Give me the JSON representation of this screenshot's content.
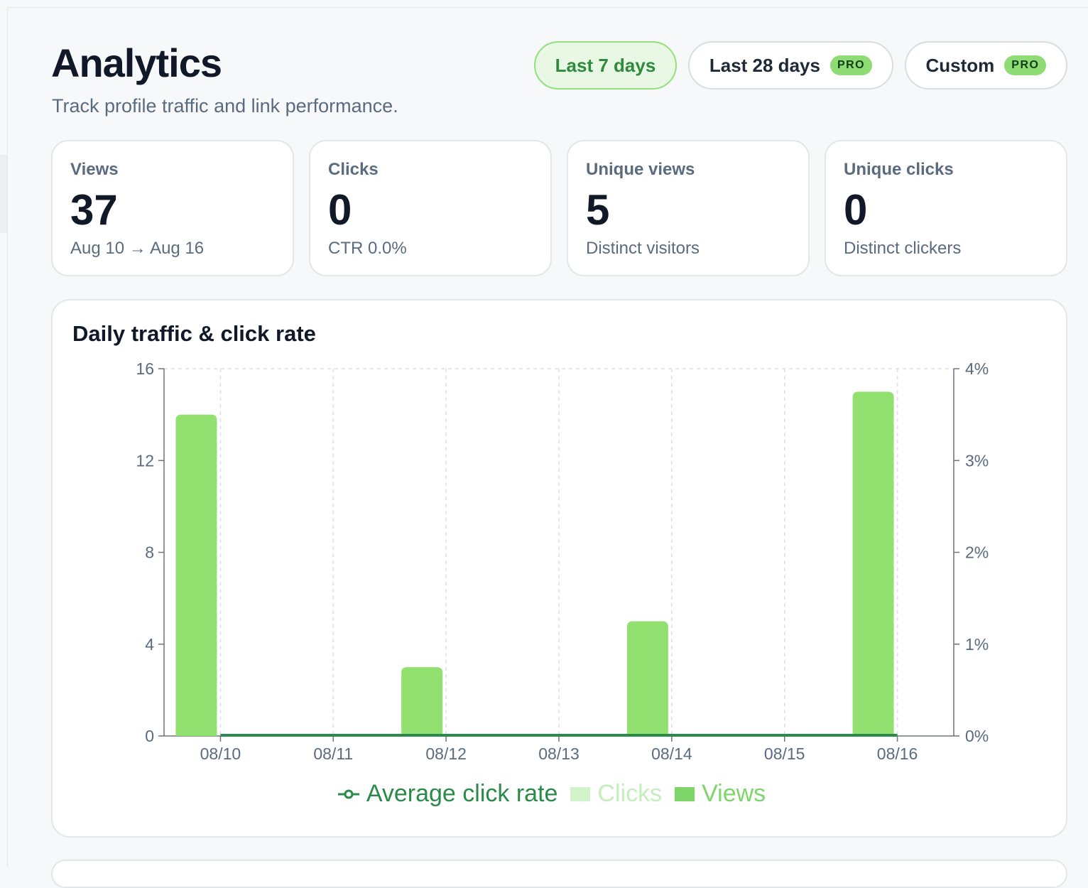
{
  "header": {
    "title": "Analytics",
    "subtitle": "Track profile traffic and link performance."
  },
  "ranges": [
    {
      "label": "Last 7 days",
      "active": true,
      "pro": false
    },
    {
      "label": "Last 28 days",
      "active": false,
      "pro": true
    },
    {
      "label": "Custom",
      "active": false,
      "pro": true
    }
  ],
  "pro_badge": "PRO",
  "stats": [
    {
      "label": "Views",
      "value": "37",
      "sub": "Aug 10 → Aug 16"
    },
    {
      "label": "Clicks",
      "value": "0",
      "sub": "CTR 0.0%"
    },
    {
      "label": "Unique views",
      "value": "5",
      "sub": "Distinct visitors"
    },
    {
      "label": "Unique clicks",
      "value": "0",
      "sub": "Distinct clickers"
    }
  ],
  "chart": {
    "title": "Daily traffic & click rate"
  },
  "legend": {
    "rate": "Average click rate",
    "clicks": "Clicks",
    "views": "Views"
  },
  "colors": {
    "views": "#92e070",
    "clicks": "#c6f0bc",
    "rate": "#2a8a4a",
    "accent": "#2f8a3c"
  },
  "chart_data": {
    "type": "bar",
    "categories": [
      "08/10",
      "08/11",
      "08/12",
      "08/13",
      "08/14",
      "08/15",
      "08/16"
    ],
    "series": [
      {
        "name": "Views",
        "values": [
          14,
          0,
          3,
          0,
          5,
          0,
          15
        ],
        "axis": "left"
      },
      {
        "name": "Clicks",
        "values": [
          0,
          0,
          0,
          0,
          0,
          0,
          0
        ],
        "axis": "left"
      },
      {
        "name": "Average click rate",
        "type": "line",
        "values": [
          0,
          0,
          0,
          0,
          0,
          0,
          0
        ],
        "axis": "right"
      }
    ],
    "title": "Daily traffic & click rate",
    "ylim": [
      0,
      16
    ],
    "yticks": [
      "0",
      "4",
      "8",
      "12",
      "16"
    ],
    "y2lim": [
      0,
      4
    ],
    "y2ticks": [
      "0%",
      "1%",
      "2%",
      "3%",
      "4%"
    ],
    "grid": true,
    "legend_position": "bottom"
  }
}
